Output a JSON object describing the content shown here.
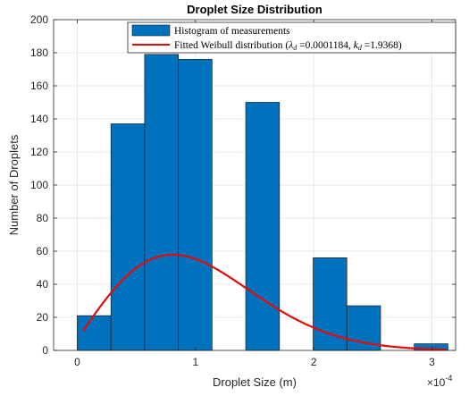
{
  "chart_data": {
    "type": "bar",
    "title": "Droplet Size Distribution",
    "xlabel": "Droplet Size (m)",
    "ylabel": "Number of Droplets",
    "x_multiplier_base": "×10",
    "x_multiplier_exp": "-4",
    "xlim": [
      -0.2,
      3.2
    ],
    "ylim": [
      0,
      200
    ],
    "xticks": [
      0,
      1,
      2,
      3
    ],
    "yticks": [
      0,
      20,
      40,
      60,
      80,
      100,
      120,
      140,
      160,
      180,
      200
    ],
    "grid": true,
    "legend_position": "top-right",
    "histogram": {
      "name": "Histogram of measurements",
      "color": "#0072BD",
      "bins": [
        {
          "start": 0.0,
          "end": 0.285,
          "value": 21
        },
        {
          "start": 0.285,
          "end": 0.57,
          "value": 137
        },
        {
          "start": 0.57,
          "end": 0.855,
          "value": 179
        },
        {
          "start": 0.855,
          "end": 1.14,
          "value": 176
        },
        {
          "start": 1.425,
          "end": 1.71,
          "value": 150
        },
        {
          "start": 1.995,
          "end": 2.28,
          "value": 56
        },
        {
          "start": 2.28,
          "end": 2.565,
          "value": 27
        },
        {
          "start": 2.85,
          "end": 3.135,
          "value": 4
        }
      ]
    },
    "fit": {
      "name": "Fitted Weibull distribution",
      "lambda_symbol": "λ",
      "k_symbol": "k",
      "sub": "d",
      "lambda_value": "=0.0001184",
      "k_value": "=1.9368",
      "color": "#E30B0B",
      "lambda": 1.184,
      "k": 1.9368,
      "scale": 285,
      "x_start": 0.05,
      "x_end": 3.12
    }
  }
}
